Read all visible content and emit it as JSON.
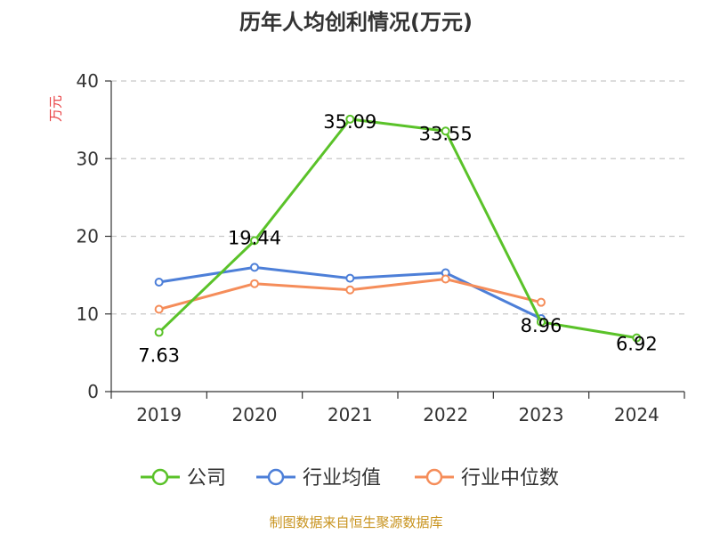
{
  "chart_data": {
    "type": "line",
    "title": "历年人均创利情况(万元)",
    "ylabel": "万元",
    "xlabel": "",
    "categories": [
      "2019",
      "2020",
      "2021",
      "2022",
      "2023",
      "2024"
    ],
    "ylim": [
      0,
      40
    ],
    "yticks": [
      0,
      10,
      20,
      30,
      40
    ],
    "grid": true,
    "legend_position": "bottom",
    "series": [
      {
        "name": "公司",
        "color": "#5ac229",
        "values": [
          7.63,
          19.44,
          35.09,
          33.55,
          8.96,
          6.92
        ],
        "show_labels": true
      },
      {
        "name": "行业均值",
        "color": "#4d7fd8",
        "values": [
          14.1,
          16.0,
          14.6,
          15.3,
          9.4,
          null
        ],
        "show_labels": false
      },
      {
        "name": "行业中位数",
        "color": "#f58d5a",
        "values": [
          10.6,
          13.9,
          13.1,
          14.5,
          11.5,
          null
        ],
        "show_labels": false
      }
    ]
  },
  "source": "制图数据来自恒生聚源数据库"
}
